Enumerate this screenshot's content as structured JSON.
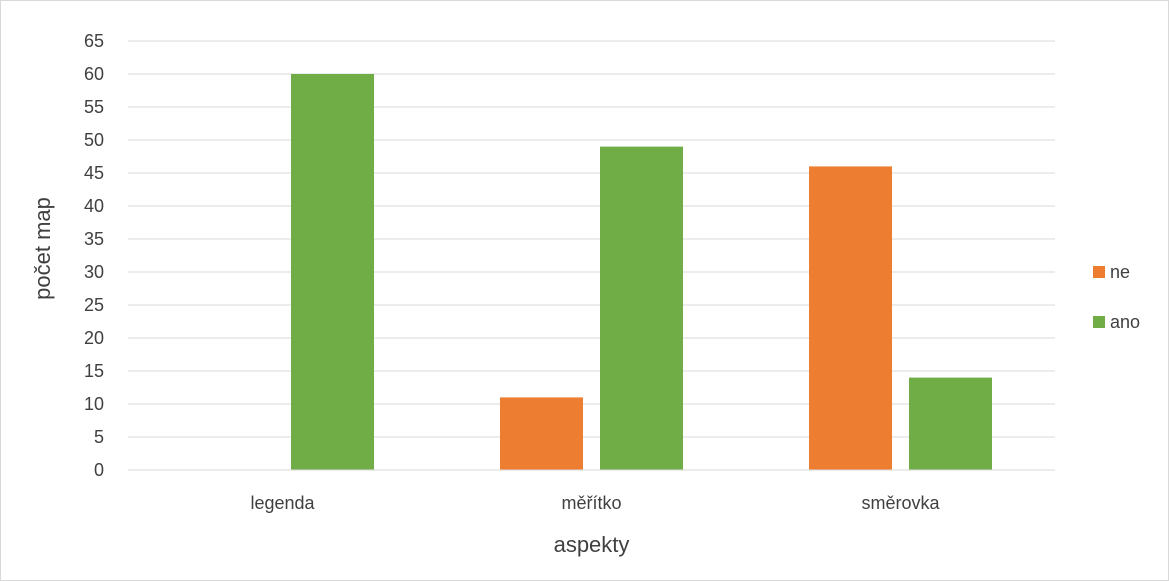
{
  "chart_data": {
    "type": "bar",
    "categories": [
      "legenda",
      "měřítko",
      "směrovka"
    ],
    "series": [
      {
        "name": "ne",
        "values": [
          0,
          11,
          46
        ],
        "color": "#ED7D31"
      },
      {
        "name": "ano",
        "values": [
          60,
          49,
          14
        ],
        "color": "#70AD47"
      }
    ],
    "title": "",
    "xlabel": "aspekty",
    "ylabel": "počet map",
    "ylim": [
      0,
      65
    ],
    "ytick_step": 5,
    "grid": true,
    "legend_position": "right"
  }
}
